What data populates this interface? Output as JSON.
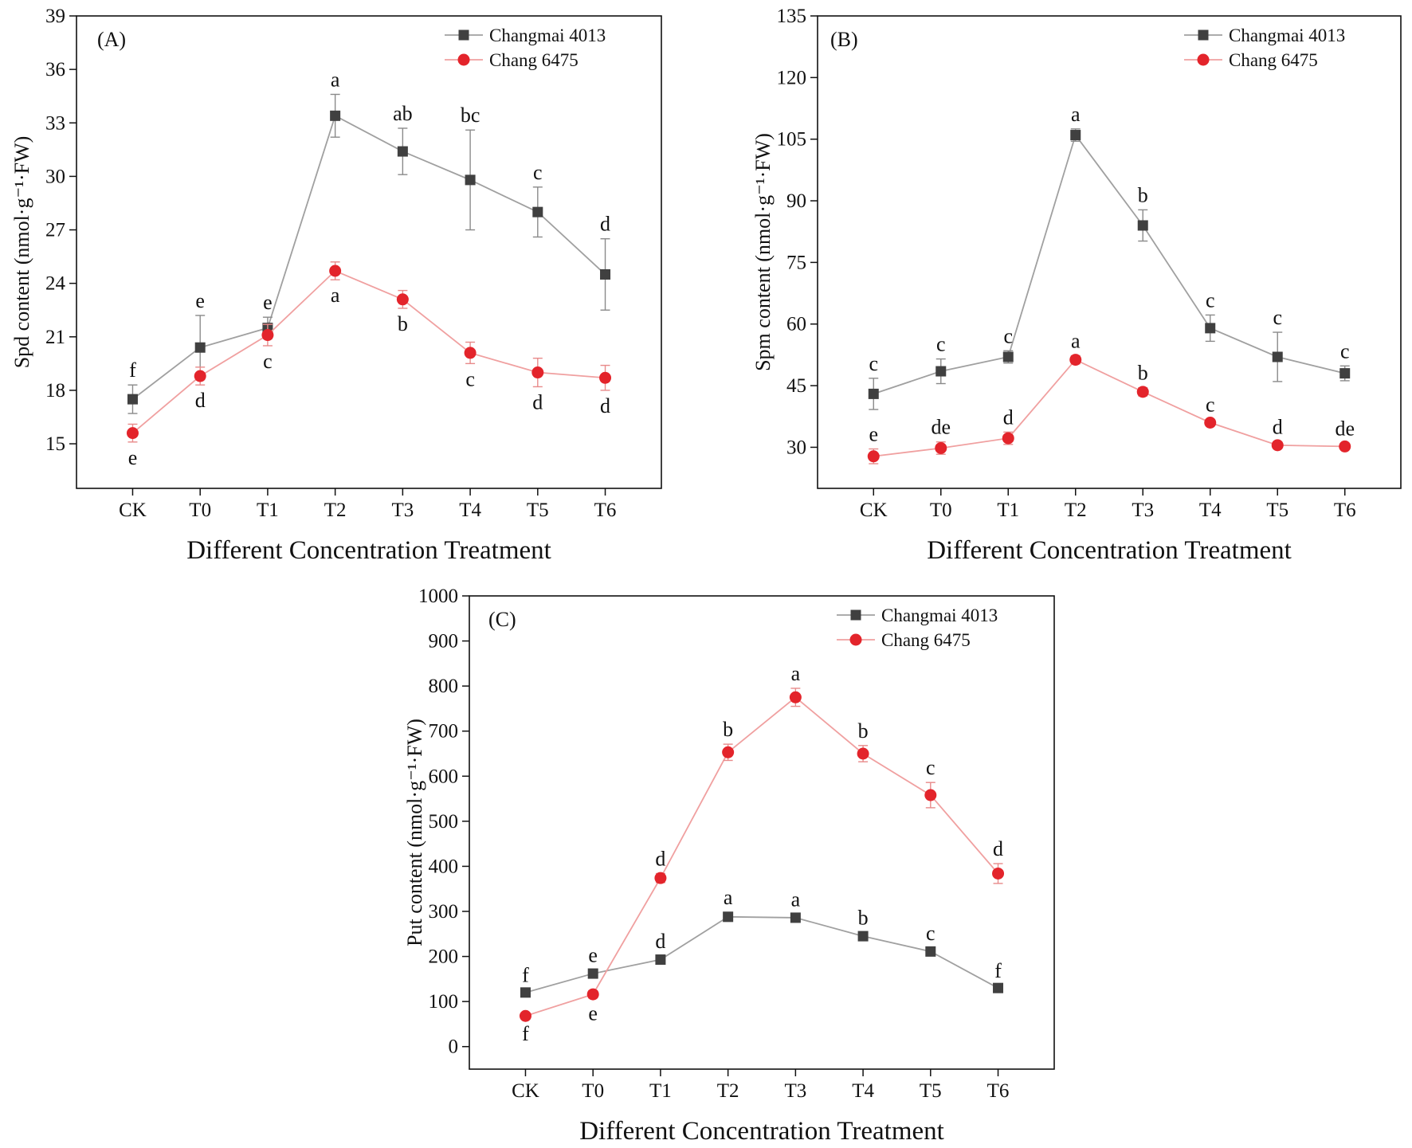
{
  "chart_data": [
    {
      "type": "line",
      "panel_label": "(A)",
      "ylabel": "Spd content (nmol·g⁻¹·FW)",
      "xlabel": "Different Concentration Treatment",
      "categories": [
        "CK",
        "T0",
        "T1",
        "T2",
        "T3",
        "T4",
        "T5",
        "T6"
      ],
      "ylim": [
        12.5,
        39
      ],
      "yticks": [
        15,
        18,
        21,
        24,
        27,
        30,
        33,
        36,
        39
      ],
      "ytick_labels": [
        "15",
        "18",
        "21",
        "24",
        "27",
        "30",
        "33",
        "36",
        "39"
      ],
      "legend_position": "top-right",
      "series": [
        {
          "name": "Changmai 4013",
          "marker": "square",
          "color": "#404040",
          "line_color": "#a0a0a0",
          "values": [
            17.5,
            20.4,
            21.5,
            33.4,
            31.4,
            29.8,
            28.0,
            24.5
          ],
          "errors": [
            0.8,
            1.8,
            0.6,
            1.2,
            1.3,
            2.8,
            1.4,
            2.0
          ],
          "letters": [
            "f",
            "e",
            "e",
            "a",
            "ab",
            "bc",
            "c",
            "d"
          ],
          "letter_side": [
            "above",
            "above",
            "above",
            "above",
            "above",
            "above",
            "above",
            "above"
          ]
        },
        {
          "name": "Chang 6475",
          "marker": "circle",
          "color": "#e3242b",
          "line_color": "#f0a0a0",
          "values": [
            15.6,
            18.8,
            21.1,
            24.7,
            23.1,
            20.1,
            19.0,
            18.7
          ],
          "errors": [
            0.5,
            0.5,
            0.6,
            0.5,
            0.5,
            0.6,
            0.8,
            0.7
          ],
          "letters": [
            "e",
            "d",
            "c",
            "a",
            "b",
            "c",
            "d",
            "d"
          ],
          "letter_side": [
            "below",
            "below",
            "below",
            "below",
            "below",
            "below",
            "below",
            "below"
          ]
        }
      ]
    },
    {
      "type": "line",
      "panel_label": "(B)",
      "ylabel": "Spm content (nmol·g⁻¹·FW)",
      "xlabel": "Different Concentration Treatment",
      "categories": [
        "CK",
        "T0",
        "T1",
        "T2",
        "T3",
        "T4",
        "T5",
        "T6"
      ],
      "ylim": [
        20,
        135
      ],
      "yticks": [
        30,
        45,
        60,
        75,
        90,
        105,
        120,
        135
      ],
      "ytick_labels": [
        "30",
        "45",
        "60",
        "75",
        "90",
        "105",
        "120",
        "135"
      ],
      "legend_position": "top-right",
      "series": [
        {
          "name": "Changmai 4013",
          "marker": "square",
          "color": "#404040",
          "line_color": "#a0a0a0",
          "values": [
            43,
            48.5,
            52,
            106,
            84,
            59,
            52,
            48
          ],
          "errors": [
            3.8,
            3.0,
            1.5,
            1.5,
            3.8,
            3.2,
            6.0,
            1.8
          ],
          "letters": [
            "c",
            "c",
            "c",
            "a",
            "b",
            "c",
            "c",
            "c"
          ],
          "letter_side": [
            "above",
            "above",
            "above",
            "above",
            "above",
            "above",
            "above",
            "above"
          ]
        },
        {
          "name": "Chang 6475",
          "marker": "circle",
          "color": "#e3242b",
          "line_color": "#f0a0a0",
          "values": [
            27.8,
            29.8,
            32.2,
            51.3,
            43.5,
            36,
            30.5,
            30.2
          ],
          "errors": [
            1.8,
            1.5,
            1.5,
            1.0,
            1.0,
            0.8,
            0.8,
            0.8
          ],
          "letters": [
            "e",
            "de",
            "d",
            "a",
            "b",
            "c",
            "d",
            "de"
          ],
          "letter_side": [
            "above",
            "above",
            "above",
            "above",
            "above",
            "above",
            "above",
            "above"
          ]
        }
      ]
    },
    {
      "type": "line",
      "panel_label": "(C)",
      "ylabel": "Put content (nmol·g⁻¹·FW)",
      "xlabel": "Different Concentration Treatment",
      "categories": [
        "CK",
        "T0",
        "T1",
        "T2",
        "T3",
        "T4",
        "T5",
        "T6"
      ],
      "ylim": [
        -50,
        1000
      ],
      "yticks": [
        0,
        100,
        200,
        300,
        400,
        500,
        600,
        700,
        800,
        900,
        1000
      ],
      "ytick_labels": [
        "0",
        "100",
        "200",
        "300",
        "400",
        "500",
        "600",
        "700",
        "800",
        "900",
        "1000"
      ],
      "legend_position": "top-right",
      "series": [
        {
          "name": "Changmai 4013",
          "marker": "square",
          "color": "#404040",
          "line_color": "#a0a0a0",
          "values": [
            120,
            162,
            193,
            288,
            286,
            245,
            211,
            130
          ],
          "errors": [
            6,
            8,
            8,
            10,
            8,
            8,
            8,
            6
          ],
          "letters": [
            "f",
            "e",
            "d",
            "a",
            "a",
            "b",
            "c",
            "f"
          ],
          "letter_side": [
            "above",
            "above",
            "above",
            "above",
            "above",
            "above",
            "above",
            "above"
          ]
        },
        {
          "name": "Chang 6475",
          "marker": "circle",
          "color": "#e3242b",
          "line_color": "#f0a0a0",
          "values": [
            68,
            116,
            374,
            653,
            775,
            650,
            558,
            384
          ],
          "errors": [
            5,
            8,
            10,
            18,
            20,
            18,
            28,
            22
          ],
          "letters": [
            "f",
            "e",
            "d",
            "b",
            "a",
            "b",
            "c",
            "d"
          ],
          "letter_side": [
            "below",
            "below",
            "above",
            "above",
            "above",
            "above",
            "above",
            "above"
          ]
        }
      ]
    }
  ]
}
